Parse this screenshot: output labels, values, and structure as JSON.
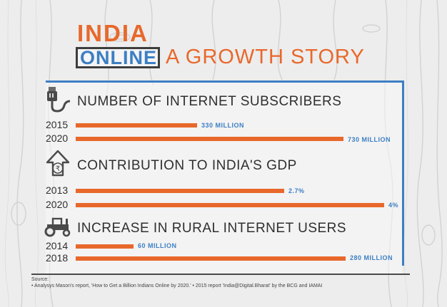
{
  "title": {
    "line1": "INDIA",
    "line2_boxed": "ONLINE",
    "line2_rest": "A GROWTH STORY"
  },
  "colors": {
    "bar": "#e8682b",
    "value_label": "#3c7fc4",
    "title_orange": "#e8682b",
    "title_blue": "#3c7fc4"
  },
  "chart_data": [
    {
      "type": "bar",
      "title": "NUMBER OF INTERNET SUBSCRIBERS",
      "icon": "ethernet-cable-icon",
      "categories": [
        "2015",
        "2020"
      ],
      "values": [
        330,
        730
      ],
      "value_labels": [
        "330 MILLION",
        "730 MILLION"
      ],
      "unit": "million"
    },
    {
      "type": "bar",
      "title": "CONTRIBUTION TO INDIA'S GDP",
      "icon": "rupee-arrow-icon",
      "categories": [
        "2013",
        "2020"
      ],
      "values": [
        2.7,
        4
      ],
      "value_labels": [
        "2.7%",
        "4%"
      ],
      "unit": "percent"
    },
    {
      "type": "bar",
      "title": "INCREASE IN RURAL INTERNET USERS",
      "icon": "tractor-icon",
      "categories": [
        "2014",
        "2018"
      ],
      "values": [
        60,
        280
      ],
      "value_labels": [
        "60 MILLION",
        "280 MILLION"
      ],
      "unit": "million"
    }
  ],
  "source": {
    "label": "Source:",
    "text": "• Analysys Mason's report, 'How to Get a Billion Indians Online by 2020.'   •  2015 report 'India@Digital.Bharat' by the BCG and IAMAI"
  }
}
